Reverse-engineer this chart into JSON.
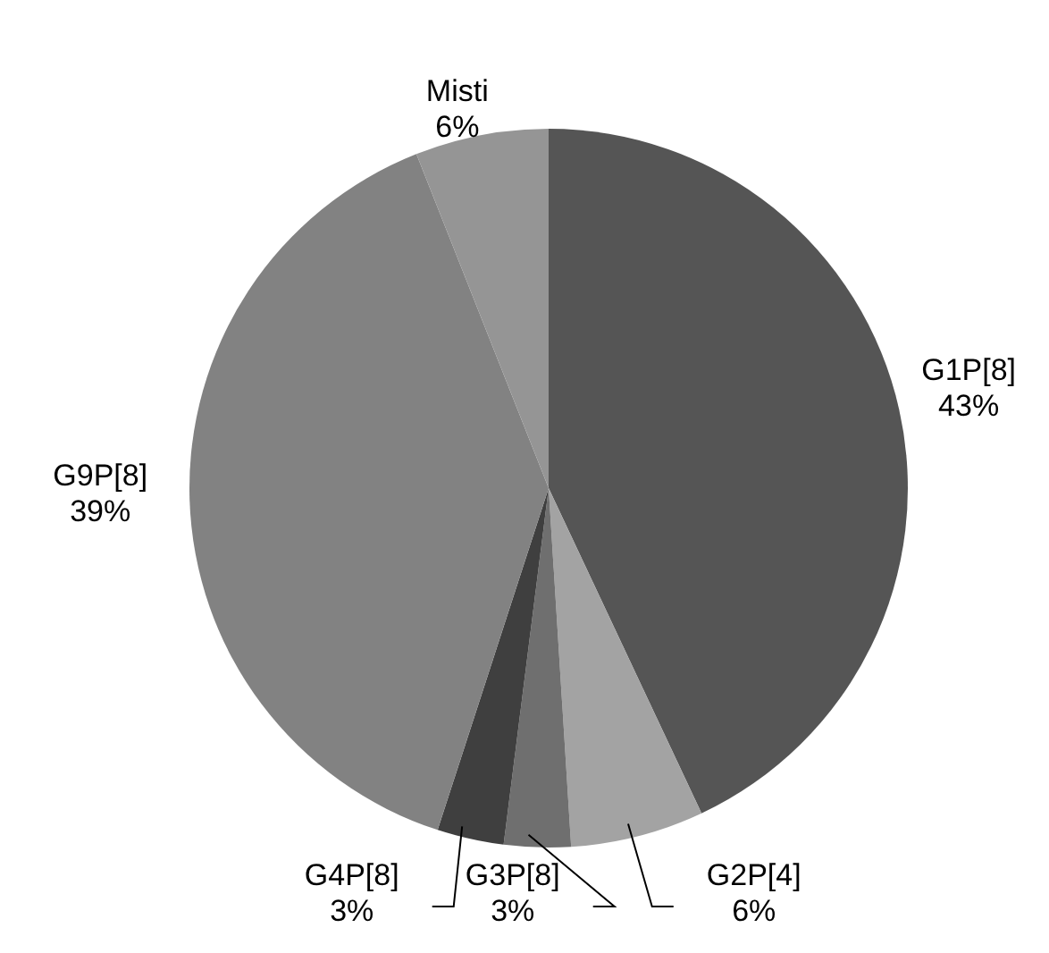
{
  "chart_data": {
    "type": "pie",
    "categories": [
      "G1P[8]",
      "G2P[4]",
      "G3P[8]",
      "G4P[8]",
      "G9P[8]",
      "Misti"
    ],
    "values": [
      43,
      6,
      3,
      3,
      39,
      6
    ],
    "colors": [
      "#555555",
      "#a3a3a3",
      "#6f6f6f",
      "#3f3f3f",
      "#828282",
      "#959595"
    ],
    "value_labels": [
      "43%",
      "6%",
      "3%",
      "3%",
      "39%",
      "6%"
    ]
  }
}
